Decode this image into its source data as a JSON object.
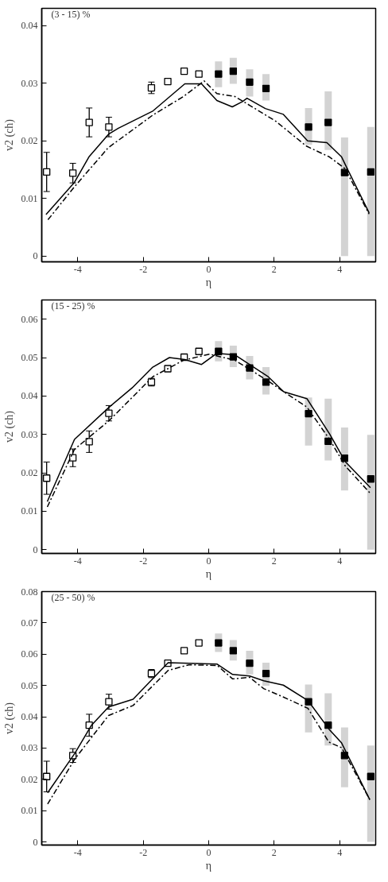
{
  "chart_data": [
    {
      "type": "scatter",
      "xlabel": "η",
      "ylabel": "v2 (ch)",
      "annotations": [
        "(3 - 15) %"
      ],
      "xlim": [
        -5.1,
        5.1
      ],
      "ylim": [
        -0.001,
        0.043
      ],
      "xticks": [
        -4,
        -2,
        0,
        2,
        4
      ],
      "yticks": [
        0,
        0.01,
        0.02,
        0.03,
        0.04
      ],
      "grid": false,
      "marker": "square",
      "series": [
        {
          "type": "line",
          "color": "#000000",
          "line_style": "solid",
          "marker": "none",
          "x": [
            -4.97,
            -4.1,
            -3.66,
            -3.05,
            -2.76,
            -1.7,
            -0.73,
            -0.22,
            0.25,
            0.72,
            1.03,
            1.17,
            1.73,
            2.28,
            3.02,
            3.61,
            4.06,
            4.23,
            4.9
          ],
          "values": [
            0.0072,
            0.0128,
            0.0172,
            0.0212,
            0.0222,
            0.0252,
            0.0299,
            0.0299,
            0.027,
            0.0259,
            0.0268,
            0.0274,
            0.0256,
            0.0246,
            0.02,
            0.0197,
            0.0172,
            0.0152,
            0.0075
          ]
        },
        {
          "type": "line",
          "color": "#000000",
          "line_style": "dashdot",
          "marker": "none",
          "x": [
            -4.91,
            -4.12,
            -3.07,
            -1.7,
            -0.77,
            -0.14,
            0.25,
            0.8,
            1.27,
            2.05,
            2.98,
            3.69,
            4.16,
            4.9
          ],
          "values": [
            0.0063,
            0.0119,
            0.0188,
            0.0245,
            0.0277,
            0.0304,
            0.0282,
            0.0277,
            0.0261,
            0.0234,
            0.0191,
            0.0172,
            0.0152,
            0.0073
          ]
        },
        {
          "color": "#ffffff",
          "x": [
            -4.95,
            -4.15,
            -3.65,
            -3.05,
            -1.75,
            -1.25,
            -0.75,
            -0.3
          ],
          "values": [
            0.0146,
            0.0144,
            0.0232,
            0.0224,
            0.0292,
            0.0303,
            0.0321,
            0.0316
          ],
          "errors": [
            0.0034,
            0.0017,
            0.0025,
            0.0017,
            0.001,
            0.0005,
            0.0005,
            0.0005
          ]
        },
        {
          "color": "#000000",
          "x": [
            0.3,
            0.75,
            1.25,
            1.75,
            3.05,
            3.65,
            4.15,
            4.95
          ],
          "values": [
            0.0316,
            0.0321,
            0.0302,
            0.0291,
            0.0224,
            0.0232,
            0.0145,
            0.0146
          ],
          "errors": [
            [
              0.0293,
              0.0338
            ],
            [
              0.0299,
              0.0344
            ],
            [
              0.0277,
              0.0324
            ],
            [
              0.027,
              0.0316
            ],
            [
              0.0193,
              0.0257
            ],
            [
              0.0184,
              0.0286
            ],
            [
              0,
              0.0206
            ],
            [
              0,
              0.0224
            ]
          ]
        }
      ]
    },
    {
      "type": "scatter",
      "xlabel": "η",
      "ylabel": "v2 (ch)",
      "annotations": [
        "(15 - 25) %"
      ],
      "xlim": [
        -5.1,
        5.1
      ],
      "ylim": [
        -0.001,
        0.065
      ],
      "xticks": [
        -4,
        -2,
        0,
        2,
        4
      ],
      "yticks": [
        0,
        0.01,
        0.02,
        0.03,
        0.04,
        0.05,
        0.06
      ],
      "grid": false,
      "marker": "square",
      "series": [
        {
          "type": "line",
          "color": "#000000",
          "line_style": "solid",
          "marker": "none",
          "x": [
            -4.93,
            -4.1,
            -3.04,
            -2.34,
            -1.71,
            -1.2,
            -0.73,
            -0.22,
            0.25,
            0.8,
            1.82,
            2.29,
            3.0,
            3.7,
            4.17,
            4.94
          ],
          "values": [
            0.0125,
            0.0287,
            0.0371,
            0.0421,
            0.0475,
            0.05,
            0.0495,
            0.0482,
            0.0511,
            0.0507,
            0.045,
            0.0411,
            0.0393,
            0.03,
            0.0229,
            0.0161
          ]
        },
        {
          "type": "line",
          "color": "#000000",
          "line_style": "dashdot",
          "marker": "none",
          "x": [
            -4.93,
            -4.1,
            -3.04,
            -1.71,
            -0.77,
            0.02,
            0.8,
            1.82,
            2.29,
            3.0,
            3.7,
            4.17,
            4.94
          ],
          "values": [
            0.0111,
            0.0261,
            0.0336,
            0.045,
            0.0493,
            0.0509,
            0.0493,
            0.0439,
            0.0411,
            0.0371,
            0.0286,
            0.0218,
            0.0146
          ]
        },
        {
          "color": "#ffffff",
          "x": [
            -4.95,
            -4.15,
            -3.65,
            -3.05,
            -1.75,
            -1.25,
            -0.75,
            -0.3
          ],
          "values": [
            0.0186,
            0.0239,
            0.0281,
            0.0355,
            0.0436,
            0.0471,
            0.0501,
            0.0516
          ],
          "errors": [
            0.0042,
            0.0023,
            0.0028,
            0.002,
            0.001,
            0.0005,
            0.0005,
            0.0005
          ]
        },
        {
          "color": "#000000",
          "x": [
            0.3,
            0.75,
            1.25,
            1.75,
            3.05,
            3.65,
            4.15,
            4.95
          ],
          "values": [
            0.0516,
            0.0502,
            0.0473,
            0.0436,
            0.0354,
            0.0282,
            0.0238,
            0.0184
          ],
          "errors": [
            [
              0.049,
              0.0543
            ],
            [
              0.0475,
              0.0531
            ],
            [
              0.0443,
              0.0504
            ],
            [
              0.0404,
              0.0475
            ],
            [
              0.0271,
              0.0396
            ],
            [
              0.0232,
              0.0393
            ],
            [
              0.0154,
              0.0318
            ],
            [
              0,
              0.0299
            ]
          ]
        }
      ]
    },
    {
      "type": "scatter",
      "xlabel": "η",
      "ylabel": "v2 (ch)",
      "annotations": [
        "(25 - 50) %"
      ],
      "xlim": [
        -5.1,
        5.1
      ],
      "ylim": [
        -0.001,
        0.08
      ],
      "xticks": [
        -4,
        -2,
        0,
        2,
        4
      ],
      "yticks": [
        0,
        0.01,
        0.02,
        0.03,
        0.04,
        0.05,
        0.06,
        0.07,
        0.08
      ],
      "grid": false,
      "marker": "square",
      "series": [
        {
          "type": "line",
          "color": "#000000",
          "line_style": "solid",
          "marker": "none",
          "x": [
            -4.92,
            -4.09,
            -3.58,
            -3.06,
            -2.31,
            -1.24,
            0.26,
            0.73,
            1.25,
            1.68,
            2.28,
            3.03,
            3.67,
            4.06,
            4.92
          ],
          "values": [
            0.0157,
            0.0283,
            0.0373,
            0.0431,
            0.0456,
            0.0573,
            0.0568,
            0.0535,
            0.053,
            0.0515,
            0.0501,
            0.0452,
            0.0361,
            0.0316,
            0.0135
          ]
        },
        {
          "type": "line",
          "color": "#000000",
          "line_style": "dashdot",
          "marker": "none",
          "x": [
            -4.92,
            -4.09,
            -3.06,
            -2.31,
            -1.24,
            -0.61,
            0.26,
            0.73,
            1.25,
            1.68,
            2.28,
            3.03,
            3.67,
            4.06,
            4.92
          ],
          "values": [
            0.0121,
            0.0265,
            0.0404,
            0.0436,
            0.0548,
            0.0566,
            0.0564,
            0.0521,
            0.0526,
            0.049,
            0.0463,
            0.0427,
            0.0319,
            0.0301,
            0.0135
          ]
        },
        {
          "color": "#ffffff",
          "x": [
            -4.95,
            -4.15,
            -3.65,
            -3.05,
            -1.75,
            -1.25,
            -0.75,
            -0.3
          ],
          "values": [
            0.0209,
            0.0276,
            0.0373,
            0.0448,
            0.0538,
            0.0571,
            0.0611,
            0.0636
          ],
          "errors": [
            0.0049,
            0.0022,
            0.0035,
            0.0024,
            0.0013,
            0.0008,
            0.0005,
            0.0005
          ]
        },
        {
          "color": "#000000",
          "x": [
            0.3,
            0.75,
            1.25,
            1.75,
            3.05,
            3.65,
            4.15,
            4.95
          ],
          "values": [
            0.0636,
            0.0611,
            0.0571,
            0.0538,
            0.0448,
            0.0373,
            0.0276,
            0.0209
          ],
          "errors": [
            [
              0.0607,
              0.0666
            ],
            [
              0.058,
              0.0645
            ],
            [
              0.0535,
              0.0611
            ],
            [
              0.0499,
              0.0573
            ],
            [
              0.035,
              0.0503
            ],
            [
              0.0308,
              0.0475
            ],
            [
              0.0175,
              0.0366
            ],
            [
              0,
              0.0308
            ]
          ]
        }
      ]
    }
  ]
}
